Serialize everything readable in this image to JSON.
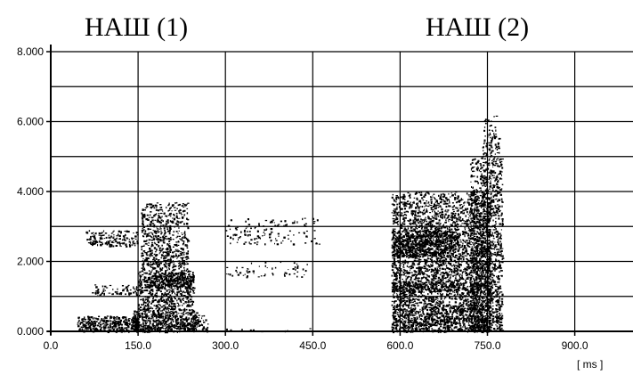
{
  "chart_data": {
    "type": "scatter",
    "title_segments": [
      "НАШ (1)",
      "НАШ (2)"
    ],
    "x_unit_label": "[ ms ]",
    "x_ticks": [
      "0.0",
      "150.0",
      "300.0",
      "450.0",
      "600.0",
      "750.0",
      "900.0"
    ],
    "y_ticks": [
      "0.000",
      "2.000",
      "4.000",
      "6.000",
      "8.000"
    ],
    "xlim": [
      0,
      1000
    ],
    "ylim": [
      0,
      8000
    ],
    "grid": true,
    "colors": {
      "ink": "#000000",
      "background": "#ffffff"
    },
    "energy_regions": [
      {
        "x": [
          45,
          150
        ],
        "y": [
          0,
          450
        ],
        "density": 0.9
      },
      {
        "x": [
          60,
          150
        ],
        "y": [
          2450,
          2900
        ],
        "density": 0.45
      },
      {
        "x": [
          70,
          150
        ],
        "y": [
          1050,
          1350
        ],
        "density": 0.3
      },
      {
        "x": [
          140,
          250
        ],
        "y": [
          0,
          600
        ],
        "density": 0.95
      },
      {
        "x": [
          150,
          245
        ],
        "y": [
          600,
          1800
        ],
        "density": 0.55
      },
      {
        "x": [
          160,
          245
        ],
        "y": [
          1250,
          1700
        ],
        "density": 0.8
      },
      {
        "x": [
          155,
          235
        ],
        "y": [
          1800,
          3700
        ],
        "density": 0.45
      },
      {
        "x": [
          245,
          270
        ],
        "y": [
          0,
          500
        ],
        "density": 0.5
      },
      {
        "x": [
          300,
          460
        ],
        "y": [
          2500,
          3250
        ],
        "density": 0.12
      },
      {
        "x": [
          300,
          440
        ],
        "y": [
          1550,
          2000
        ],
        "density": 0.1
      },
      {
        "x": [
          300,
          450
        ],
        "y": [
          0,
          100
        ],
        "density": 0.1
      },
      {
        "x": [
          585,
          755
        ],
        "y": [
          0,
          800
        ],
        "density": 0.9
      },
      {
        "x": [
          585,
          755
        ],
        "y": [
          800,
          4000
        ],
        "density": 0.55
      },
      {
        "x": [
          585,
          700
        ],
        "y": [
          2150,
          2900
        ],
        "density": 0.75
      },
      {
        "x": [
          585,
          700
        ],
        "y": [
          1150,
          1450
        ],
        "density": 0.6
      },
      {
        "x": [
          720,
          775
        ],
        "y": [
          0,
          5000
        ],
        "density": 0.55
      },
      {
        "x": [
          740,
          770
        ],
        "y": [
          5000,
          5800
        ],
        "density": 0.35
      },
      {
        "x": [
          740,
          770
        ],
        "y": [
          5800,
          6200
        ],
        "density": 0.1
      }
    ]
  }
}
